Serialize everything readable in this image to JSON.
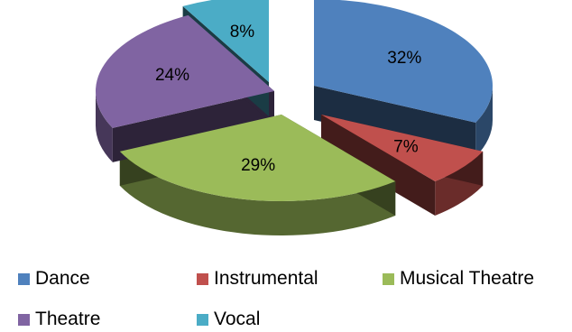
{
  "chart_data": {
    "type": "pie",
    "style": "3d-exploded",
    "title": "",
    "legend_position": "bottom",
    "slices": [
      {
        "label": "Dance",
        "value": 32,
        "value_label": "32%",
        "color": "#4f81bd"
      },
      {
        "label": "Instrumental",
        "value": 7,
        "value_label": "7%",
        "color": "#c0504d"
      },
      {
        "label": "Musical Theatre",
        "value": 29,
        "value_label": "29%",
        "color": "#9bbb59"
      },
      {
        "label": "Theatre",
        "value": 24,
        "value_label": "24%",
        "color": "#8064a2"
      },
      {
        "label": "Vocal",
        "value": 8,
        "value_label": "8%",
        "color": "#4bacc6"
      }
    ]
  }
}
